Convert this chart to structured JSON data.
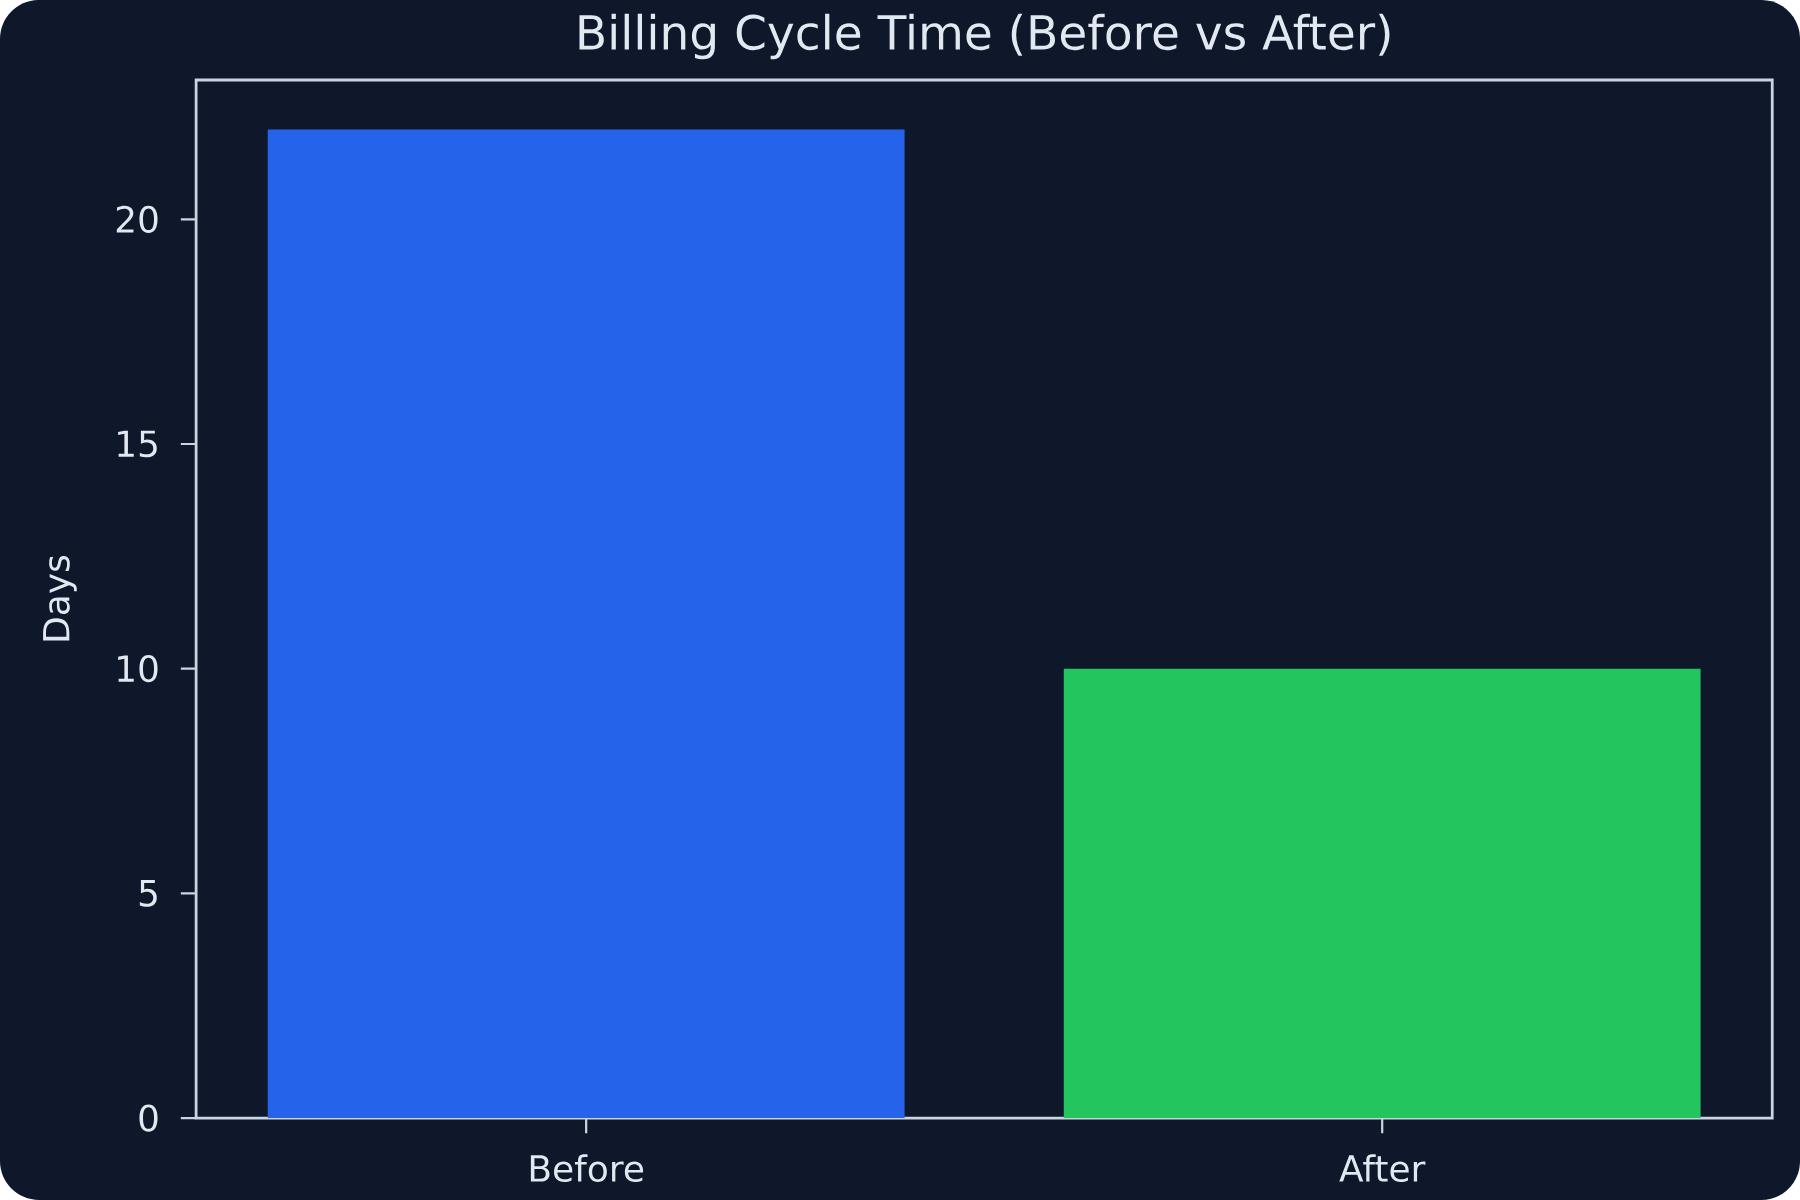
{
  "chart_data": {
    "type": "bar",
    "title": "Billing Cycle Time (Before vs After)",
    "ylabel": "Days",
    "categories": [
      "Before",
      "After"
    ],
    "values": [
      22,
      10
    ],
    "colors": [
      "#2563eb",
      "#22c55e"
    ],
    "ylim": [
      0,
      23.1
    ],
    "yticks": [
      0,
      5,
      10,
      15,
      20
    ]
  }
}
